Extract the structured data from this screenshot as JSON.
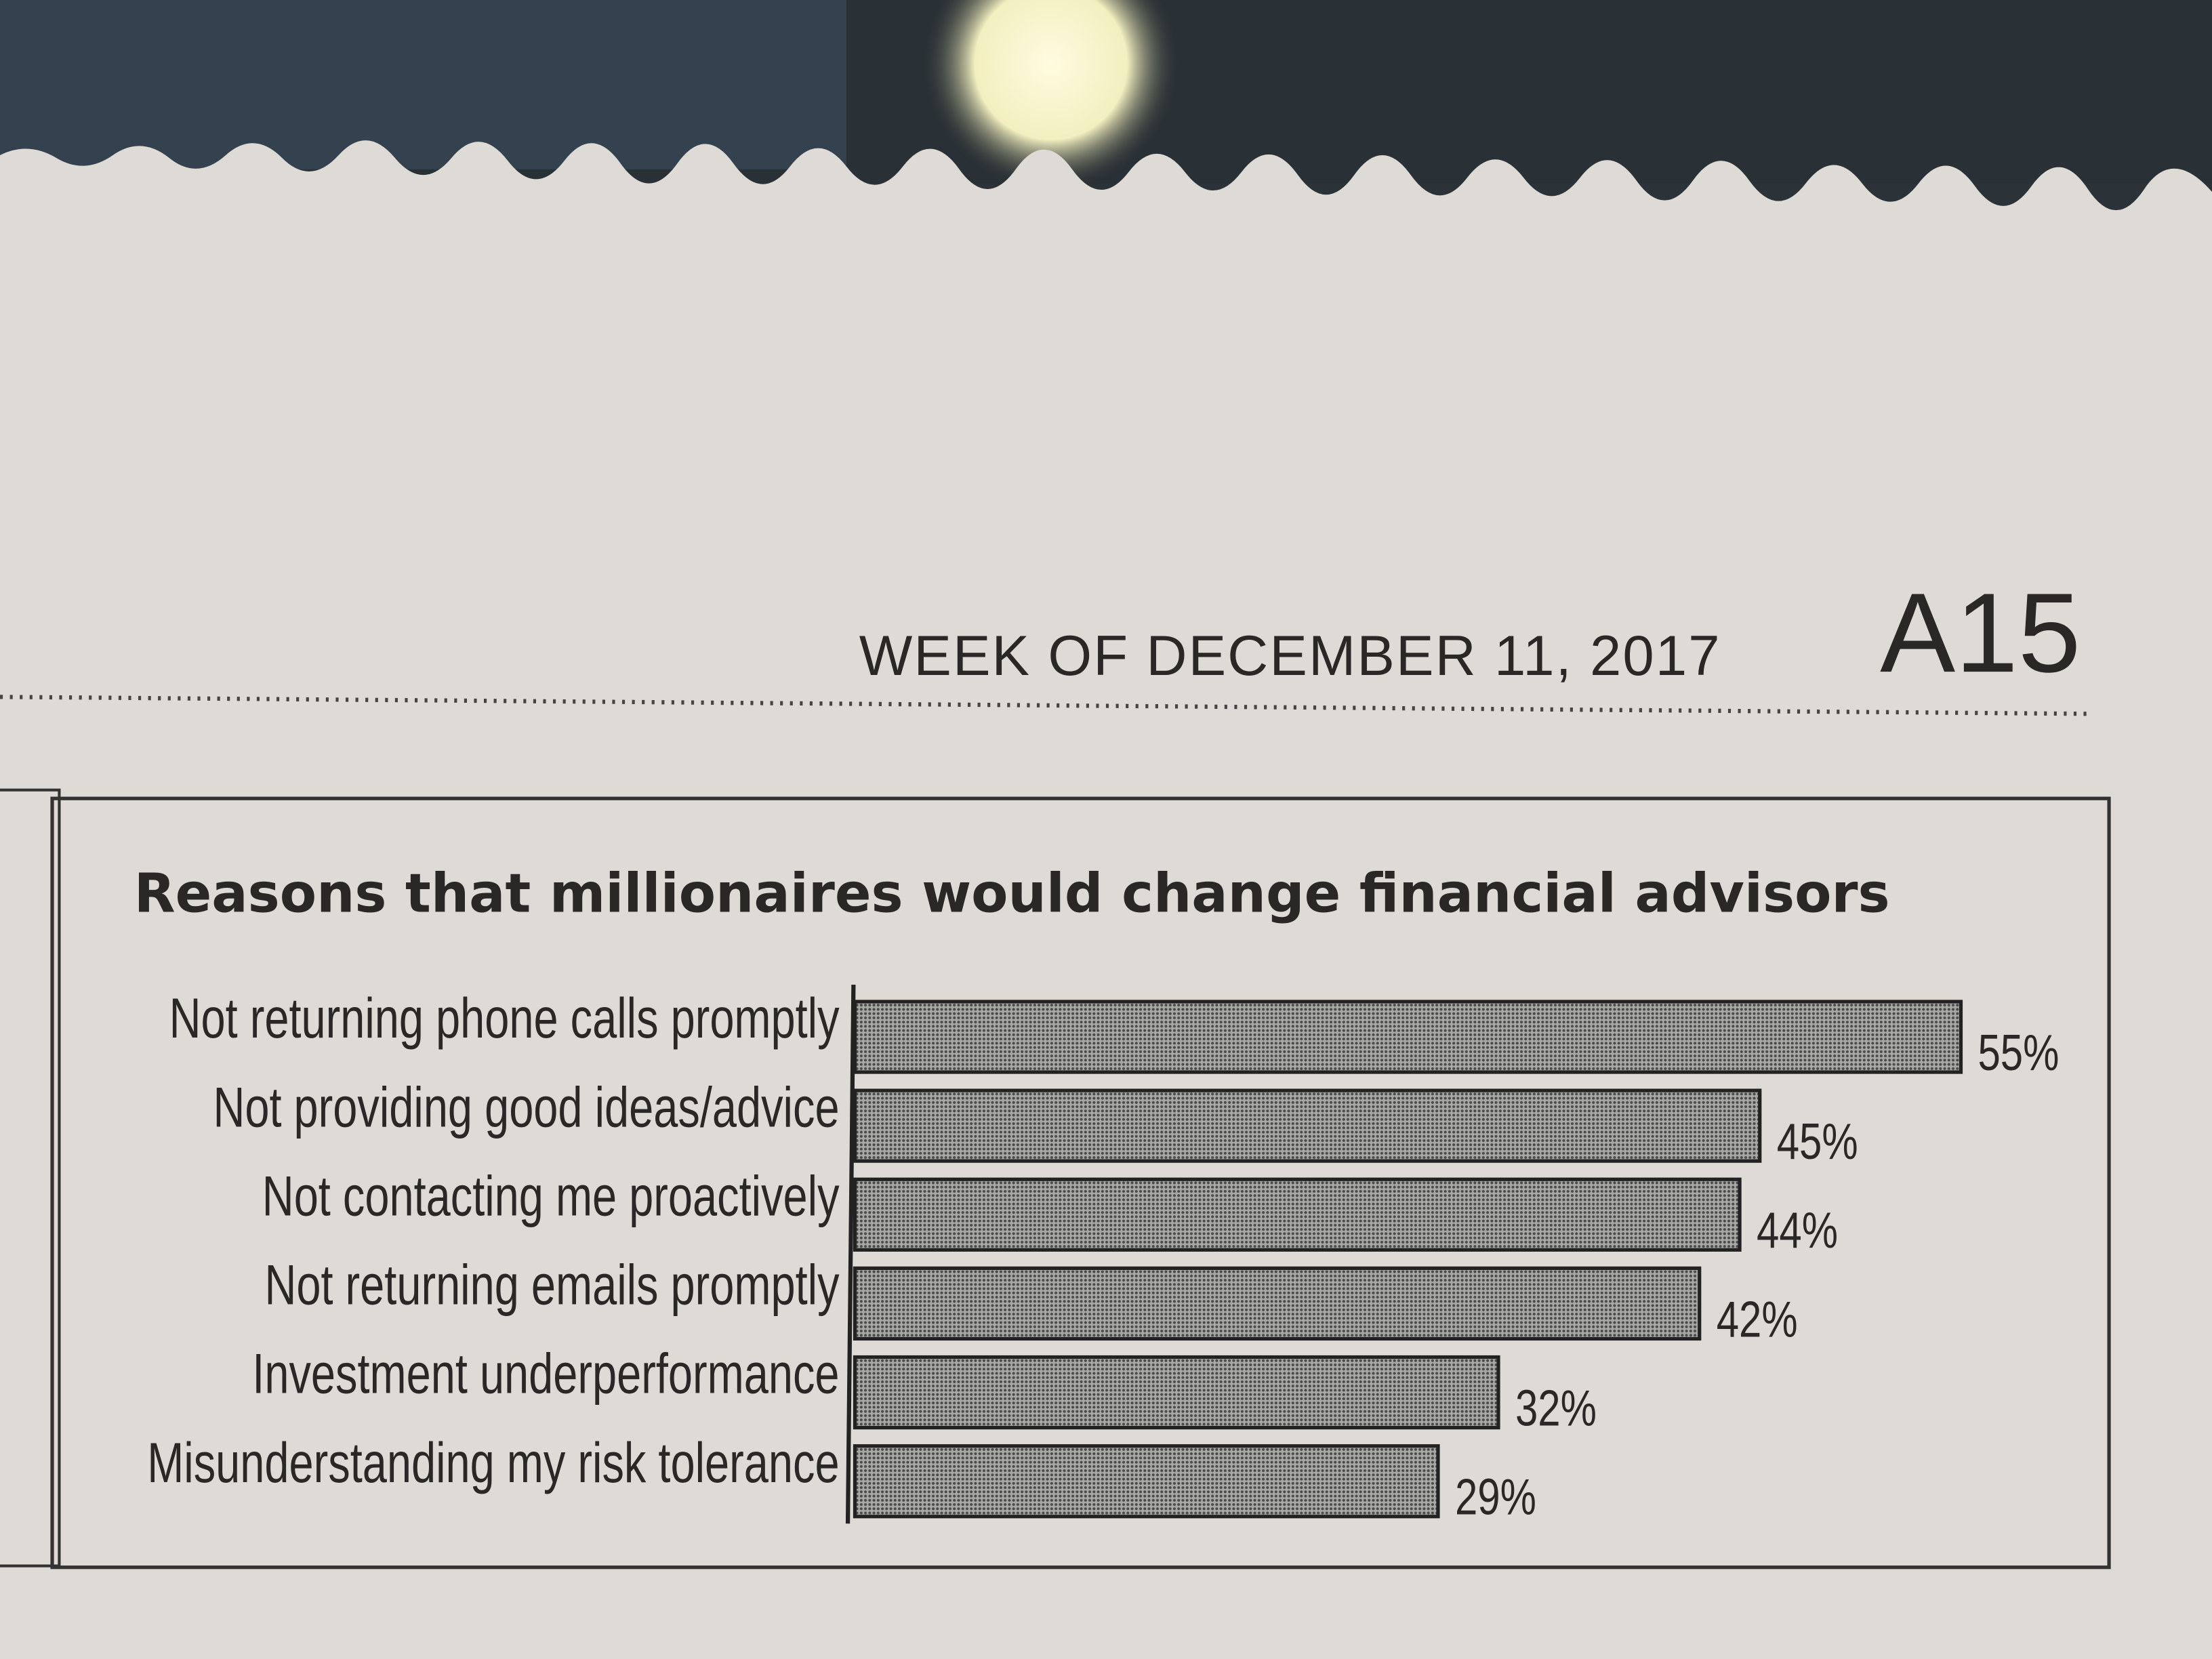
{
  "header": {
    "date": "WEEK OF DECEMBER 11, 2017",
    "page": "A15"
  },
  "chart_data": {
    "type": "bar",
    "orientation": "horizontal",
    "title": "Reasons that millionaires would change financial advisors",
    "categories": [
      "Not returning phone calls promptly",
      "Not providing good ideas/advice",
      "Not contacting me proactively",
      "Not returning emails promptly",
      "Investment underperformance",
      "Misunderstanding my risk tolerance"
    ],
    "values": [
      55,
      45,
      44,
      42,
      32,
      29
    ],
    "value_labels": [
      "55%",
      "45%",
      "44%",
      "42%",
      "32%",
      "29%"
    ],
    "color": "#8c8c8c"
  }
}
